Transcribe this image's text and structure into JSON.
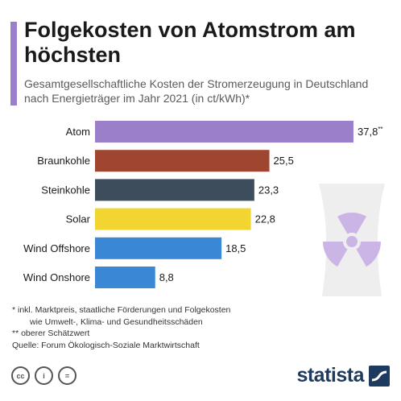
{
  "header": {
    "title": "Folgekosten von Atomstrom am höchsten",
    "subtitle": "Gesamtgesellschaftliche Kosten der Stromerzeugung in Deutschland nach Energieträger im Jahr 2021 (in ct/kWh)*",
    "accent_color": "#9b7fcb"
  },
  "chart_data": {
    "type": "bar",
    "orientation": "horizontal",
    "categories": [
      "Atom",
      "Braunkohle",
      "Steinkohle",
      "Solar",
      "Wind Offshore",
      "Wind Onshore"
    ],
    "values": [
      37.8,
      25.5,
      23.3,
      22.8,
      18.5,
      8.8
    ],
    "value_labels": [
      "37,8",
      "25,5",
      "23,3",
      "22,8",
      "18,5",
      "8,8"
    ],
    "value_annotations": [
      "**",
      "",
      "",
      "",
      "",
      ""
    ],
    "colors": [
      "#9b7fcb",
      "#a0452f",
      "#3e4d5c",
      "#f2d530",
      "#3a87d6",
      "#3a87d6"
    ],
    "xlim": [
      0,
      37.8
    ],
    "grid": false,
    "legend": "none"
  },
  "footnotes": {
    "line1": "*  inkl. Marktpreis, staatliche Förderungen und Folgekosten",
    "line2": "wie Umwelt-, Klima- und Gesundheitsschäden",
    "line3": "** oberer Schätzwert",
    "source": "Quelle: Forum Ökologisch-Soziale Marktwirtschaft"
  },
  "license": {
    "cc": "cc",
    "by": "i",
    "nd": "="
  },
  "brand": {
    "name": "statista"
  }
}
